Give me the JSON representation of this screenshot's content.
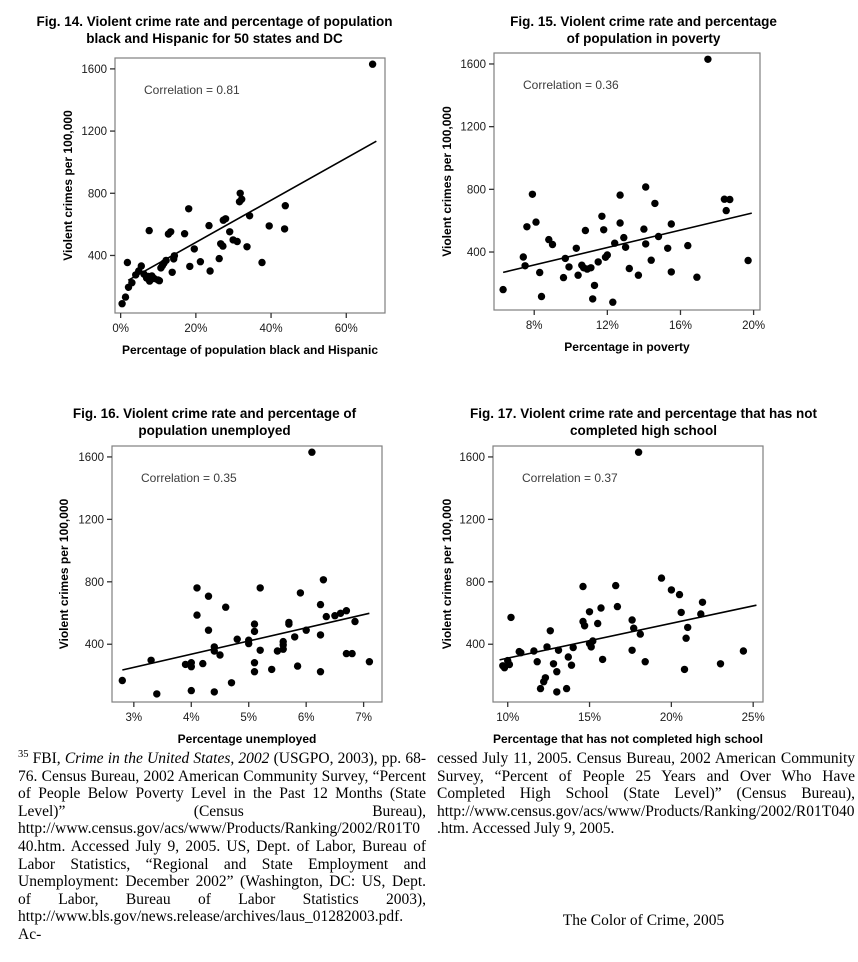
{
  "chart_data": [
    {
      "type": "scatter",
      "title": "Fig. 14. Violent crime rate and percentage of population black and Hispanic for 50 states and DC",
      "annotation": "Correlation = 0.81",
      "correlation": 0.81,
      "xlabel": "Percentage of population black and Hispanic",
      "ylabel": "Violent crimes per 100,000",
      "xlim": [
        -1.5,
        70.3
      ],
      "ylim": [
        30,
        1670
      ],
      "x_tick_values": [
        0,
        20,
        40,
        60
      ],
      "x_tick_labels": [
        "0%",
        "20%",
        "40%",
        "60%"
      ],
      "y_tick_values": [
        400,
        800,
        1200,
        1600
      ],
      "y_tick_labels": [
        "400",
        "800",
        "1200",
        "1600"
      ],
      "grid": false,
      "legend": "none",
      "trend_line": [
        [
          2,
          240
        ],
        [
          68,
          1135
        ]
      ],
      "points": [
        [
          0.4,
          90
        ],
        [
          1.3,
          132
        ],
        [
          1.8,
          355
        ],
        [
          2.1,
          195
        ],
        [
          3.0,
          225
        ],
        [
          4.0,
          275
        ],
        [
          4.8,
          300
        ],
        [
          5.5,
          332
        ],
        [
          6.2,
          280
        ],
        [
          6.9,
          255
        ],
        [
          7.4,
          265
        ],
        [
          7.6,
          560
        ],
        [
          7.7,
          235
        ],
        [
          8.3,
          268
        ],
        [
          8.9,
          252
        ],
        [
          9.9,
          243
        ],
        [
          10.3,
          238
        ],
        [
          10.7,
          320
        ],
        [
          11.1,
          335
        ],
        [
          11.5,
          350
        ],
        [
          12.1,
          368
        ],
        [
          12.7,
          538
        ],
        [
          13.3,
          552
        ],
        [
          13.7,
          292
        ],
        [
          14.1,
          378
        ],
        [
          14.3,
          398
        ],
        [
          17.0,
          540
        ],
        [
          18.1,
          700
        ],
        [
          18.4,
          330
        ],
        [
          19.6,
          442
        ],
        [
          21.2,
          360
        ],
        [
          23.5,
          592
        ],
        [
          23.8,
          300
        ],
        [
          26.2,
          380
        ],
        [
          26.6,
          475
        ],
        [
          27.2,
          460
        ],
        [
          27.3,
          627
        ],
        [
          27.9,
          636
        ],
        [
          29.0,
          552
        ],
        [
          29.9,
          500
        ],
        [
          31.0,
          490
        ],
        [
          31.6,
          745
        ],
        [
          31.8,
          800
        ],
        [
          32.2,
          762
        ],
        [
          33.6,
          456
        ],
        [
          34.3,
          655
        ],
        [
          37.6,
          355
        ],
        [
          39.5,
          590
        ],
        [
          43.6,
          571
        ],
        [
          43.8,
          720
        ],
        [
          67.0,
          1630
        ]
      ]
    },
    {
      "type": "scatter",
      "title": "Fig. 15. Violent crime rate and percentage of population in poverty",
      "annotation": "Correlation = 0.36",
      "correlation": 0.36,
      "xlabel": "Percentage in poverty",
      "ylabel": "Violent crimes per 100,000",
      "xlim": [
        5.8,
        20.35
      ],
      "ylim": [
        30,
        1670
      ],
      "x_tick_values": [
        8,
        12,
        16,
        20
      ],
      "x_tick_labels": [
        "8%",
        "12%",
        "16%",
        "20%"
      ],
      "y_tick_values": [
        400,
        800,
        1200,
        1600
      ],
      "y_tick_labels": [
        "400",
        "800",
        "1200",
        "1600"
      ],
      "grid": false,
      "legend": "none",
      "trend_line": [
        [
          6.3,
          270
        ],
        [
          19.9,
          648
        ]
      ],
      "points": [
        [
          6.3,
          160
        ],
        [
          7.4,
          368
        ],
        [
          7.5,
          312
        ],
        [
          7.6,
          561
        ],
        [
          7.9,
          768
        ],
        [
          8.1,
          591
        ],
        [
          8.3,
          269
        ],
        [
          8.4,
          116
        ],
        [
          8.8,
          479
        ],
        [
          9.0,
          448
        ],
        [
          9.6,
          237
        ],
        [
          9.7,
          359
        ],
        [
          9.9,
          305
        ],
        [
          10.3,
          424
        ],
        [
          10.4,
          252
        ],
        [
          10.6,
          316
        ],
        [
          10.7,
          299
        ],
        [
          10.8,
          537
        ],
        [
          10.9,
          291
        ],
        [
          11.1,
          299
        ],
        [
          11.2,
          101
        ],
        [
          11.3,
          187
        ],
        [
          11.5,
          337
        ],
        [
          11.7,
          628
        ],
        [
          11.8,
          542
        ],
        [
          11.9,
          366
        ],
        [
          12.0,
          381
        ],
        [
          12.3,
          80
        ],
        [
          12.4,
          456
        ],
        [
          12.7,
          585
        ],
        [
          12.7,
          763
        ],
        [
          12.9,
          492
        ],
        [
          13.0,
          430
        ],
        [
          13.2,
          295
        ],
        [
          13.7,
          252
        ],
        [
          14.0,
          546
        ],
        [
          14.1,
          815
        ],
        [
          14.1,
          452
        ],
        [
          14.4,
          348
        ],
        [
          14.6,
          710
        ],
        [
          14.8,
          499
        ],
        [
          15.3,
          424
        ],
        [
          15.5,
          273
        ],
        [
          15.5,
          579
        ],
        [
          16.4,
          441
        ],
        [
          16.9,
          239
        ],
        [
          17.5,
          1630
        ],
        [
          18.4,
          737
        ],
        [
          18.5,
          664
        ],
        [
          18.7,
          735
        ],
        [
          19.7,
          346
        ]
      ]
    },
    {
      "type": "scatter",
      "title": "Fig. 16. Violent crime rate and percentage of population unemployed",
      "annotation": "Correlation = 0.35",
      "correlation": 0.35,
      "xlabel": "Percentage unemployed",
      "ylabel": "Violent crimes per 100,000",
      "xlim": [
        2.62,
        7.32
      ],
      "ylim": [
        30,
        1670
      ],
      "x_tick_values": [
        3,
        4,
        5,
        6,
        7
      ],
      "x_tick_labels": [
        "3%",
        "4%",
        "5%",
        "6%",
        "7%"
      ],
      "y_tick_values": [
        400,
        800,
        1200,
        1600
      ],
      "y_tick_labels": [
        "400",
        "800",
        "1200",
        "1600"
      ],
      "grid": false,
      "legend": "none",
      "trend_line": [
        [
          2.8,
          235
        ],
        [
          7.1,
          598
        ]
      ],
      "points": [
        [
          2.8,
          168
        ],
        [
          3.3,
          297
        ],
        [
          3.4,
          82
        ],
        [
          3.9,
          271
        ],
        [
          4.0,
          103
        ],
        [
          4.0,
          256
        ],
        [
          4.0,
          282
        ],
        [
          4.1,
          761
        ],
        [
          4.1,
          587
        ],
        [
          4.2,
          276
        ],
        [
          4.3,
          708
        ],
        [
          4.3,
          490
        ],
        [
          4.4,
          95
        ],
        [
          4.4,
          357
        ],
        [
          4.4,
          383
        ],
        [
          4.5,
          331
        ],
        [
          4.6,
          637
        ],
        [
          4.7,
          153
        ],
        [
          4.8,
          432
        ],
        [
          5.0,
          426
        ],
        [
          5.0,
          404
        ],
        [
          5.1,
          529
        ],
        [
          5.1,
          482
        ],
        [
          5.1,
          282
        ],
        [
          5.1,
          224
        ],
        [
          5.2,
          761
        ],
        [
          5.2,
          361
        ],
        [
          5.4,
          239
        ],
        [
          5.5,
          357
        ],
        [
          5.6,
          368
        ],
        [
          5.6,
          396
        ],
        [
          5.6,
          417
        ],
        [
          5.7,
          540
        ],
        [
          5.7,
          529
        ],
        [
          5.8,
          447
        ],
        [
          5.85,
          260
        ],
        [
          5.9,
          729
        ],
        [
          6.0,
          490
        ],
        [
          6.1,
          1630
        ],
        [
          6.25,
          654
        ],
        [
          6.25,
          460
        ],
        [
          6.25,
          224
        ],
        [
          6.3,
          813
        ],
        [
          6.35,
          577
        ],
        [
          6.5,
          583
        ],
        [
          6.6,
          598
        ],
        [
          6.7,
          615
        ],
        [
          6.7,
          340
        ],
        [
          6.8,
          340
        ],
        [
          6.85,
          546
        ],
        [
          7.1,
          288
        ]
      ]
    },
    {
      "type": "scatter",
      "title": "Fig. 17. Violent crime rate and percentage that has not completed high school",
      "annotation": "Correlation = 0.37",
      "correlation": 0.37,
      "xlabel": "Percentage that has not completed high school",
      "ylabel": "Violent crimes per 100,000",
      "xlim": [
        9.1,
        25.6
      ],
      "ylim": [
        30,
        1670
      ],
      "x_tick_values": [
        10,
        15,
        20,
        25
      ],
      "x_tick_labels": [
        "10%",
        "15%",
        "20%",
        "25%"
      ],
      "y_tick_values": [
        400,
        800,
        1200,
        1600
      ],
      "y_tick_labels": [
        "400",
        "800",
        "1200",
        "1600"
      ],
      "grid": false,
      "legend": "none",
      "trend_line": [
        [
          9.5,
          300
        ],
        [
          25.2,
          650
        ]
      ],
      "points": [
        [
          9.7,
          262
        ],
        [
          9.8,
          250
        ],
        [
          10.0,
          295
        ],
        [
          10.1,
          270
        ],
        [
          10.2,
          572
        ],
        [
          10.7,
          353
        ],
        [
          10.8,
          346
        ],
        [
          11.6,
          357
        ],
        [
          11.8,
          288
        ],
        [
          12.0,
          116
        ],
        [
          12.2,
          160
        ],
        [
          12.3,
          185
        ],
        [
          12.4,
          383
        ],
        [
          12.6,
          486
        ],
        [
          12.8,
          275
        ],
        [
          13.0,
          224
        ],
        [
          13.0,
          95
        ],
        [
          13.1,
          361
        ],
        [
          13.6,
          116
        ],
        [
          13.7,
          318
        ],
        [
          13.9,
          266
        ],
        [
          14.0,
          379
        ],
        [
          14.6,
          770
        ],
        [
          14.6,
          546
        ],
        [
          14.7,
          518
        ],
        [
          15.0,
          608
        ],
        [
          15.0,
          404
        ],
        [
          15.1,
          383
        ],
        [
          15.2,
          421
        ],
        [
          15.5,
          533
        ],
        [
          15.7,
          632
        ],
        [
          15.8,
          303
        ],
        [
          16.6,
          776
        ],
        [
          16.7,
          641
        ],
        [
          17.6,
          555
        ],
        [
          17.6,
          361
        ],
        [
          17.7,
          503
        ],
        [
          18.0,
          1630
        ],
        [
          18.1,
          465
        ],
        [
          18.4,
          288
        ],
        [
          19.4,
          824
        ],
        [
          20.0,
          748
        ],
        [
          20.5,
          718
        ],
        [
          20.6,
          604
        ],
        [
          20.8,
          239
        ],
        [
          20.9,
          439
        ],
        [
          21.0,
          508
        ],
        [
          21.8,
          594
        ],
        [
          21.9,
          669
        ],
        [
          23.0,
          275
        ],
        [
          24.4,
          357
        ]
      ]
    }
  ],
  "footnotes": {
    "left_segments": [
      {
        "text": "35",
        "sup": true
      },
      {
        "text": " FBI, ",
        "italic": false
      },
      {
        "text": "Crime in the United States, 2002",
        "italic": true
      },
      {
        "text": " (USGPO, 2003), pp. 68-76. Census Bureau, 2002 American Community Survey, “Percent of People Below Poverty Level in the Past 12 Months (State Level)” (Census Bureau), http://www.census.gov/acs/www/Products/Ranking/2002/R01T040.htm. Accessed July 9, 2005. US, Dept. of Labor, Bureau of Labor Statistics, “Regional and State Employment and Unemployment: December 2002” (Washington, DC: US, Dept. of Labor, Bureau of Labor Statistics 2003), http://www.bls.gov/news.release/archives/laus_01282003.pdf. Ac-",
        "italic": false
      }
    ],
    "right_text": "cessed July 11, 2005. Census Bureau, 2002 American Community Survey, “Percent of People 25 Years and Over Who Have Completed High School (State Level)” (Census Bureau), http://www.census.gov/acs/www/Products/Ranking/2002/R01T040.htm. Accessed July 9, 2005.",
    "footer": "The Color of Crime, 2005"
  },
  "colors": {
    "point": "#000000",
    "trend_line": "#000000",
    "frame": "#7f7f7f",
    "text": "#000000"
  }
}
